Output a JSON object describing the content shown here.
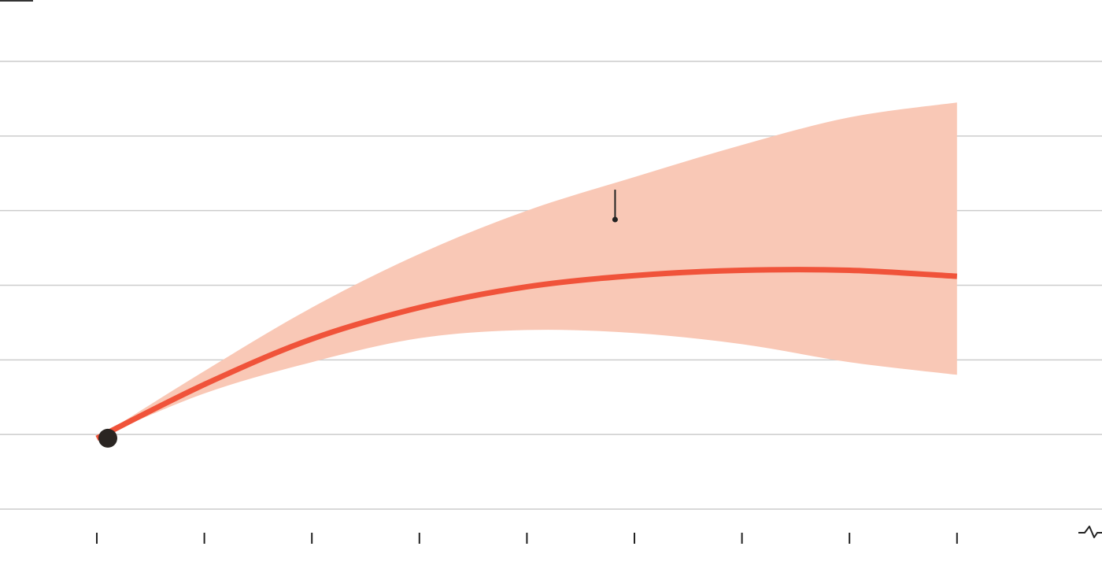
{
  "chart_data": {
    "type": "line",
    "title": "",
    "xlabel": "",
    "ylabel": "",
    "grid": true,
    "x": [
      0,
      1,
      2,
      3,
      4,
      5,
      6,
      7,
      8
    ],
    "xlim": [
      -0.1,
      9.3
    ],
    "ylim": [
      0,
      6
    ],
    "gridlines_y": [
      0,
      1,
      2,
      3,
      4,
      5,
      6
    ],
    "series": [
      {
        "values": [
          0.95,
          1.67,
          2.28,
          2.7,
          2.98,
          3.13,
          3.2,
          3.2,
          3.12
        ],
        "color": "#f0533a"
      }
    ],
    "band": {
      "upper": [
        0.95,
        1.85,
        2.7,
        3.42,
        4.0,
        4.45,
        4.88,
        5.25,
        5.45
      ],
      "lower": [
        0.95,
        1.55,
        1.97,
        2.29,
        2.4,
        2.36,
        2.21,
        1.97,
        1.8
      ],
      "color": "#f9c8b6"
    },
    "start_marker": {
      "x": 0,
      "y": 0.95,
      "color": "#2a2522"
    },
    "annotation": {
      "x": 4.82,
      "y": 3.88
    },
    "colors": {
      "gridline": "#cccccc",
      "tick": "#222222",
      "corner": "#333333"
    },
    "axis_break_icon": "squiggle-axis-break-icon"
  }
}
